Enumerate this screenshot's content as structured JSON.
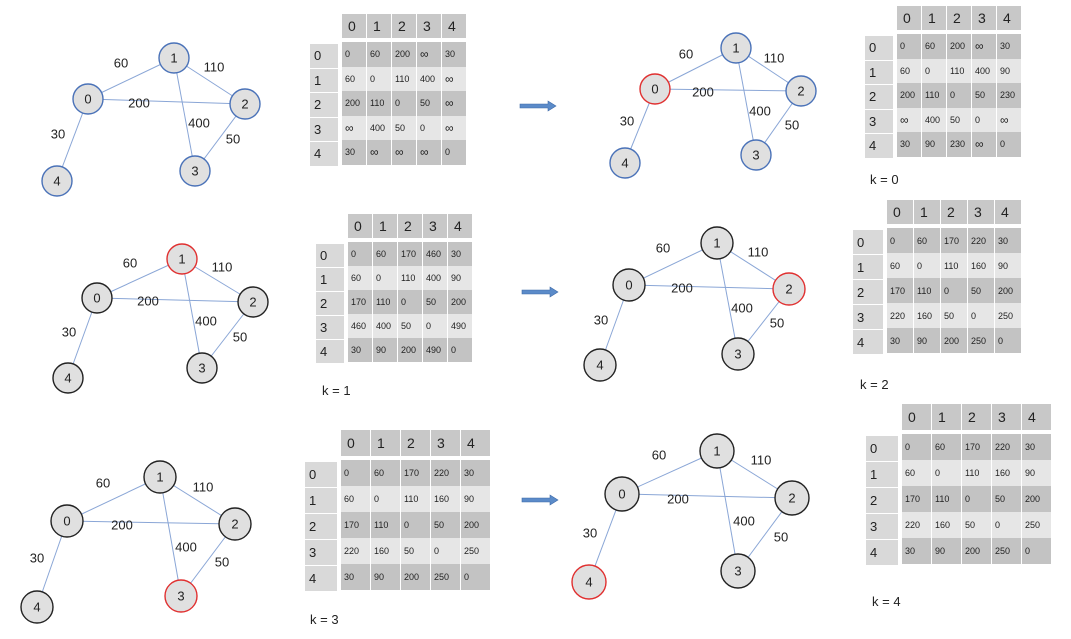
{
  "colors": {
    "node_fill": "#e0e0e0",
    "node_stroke": "#4a72b8",
    "edge": "#8aa6d6",
    "highlight": "#e03030",
    "plain_node_stroke": "#222222",
    "arrow": "#5b8bc9"
  },
  "col_headers": [
    "0",
    "1",
    "2",
    "3",
    "4"
  ],
  "row_headers": [
    "0",
    "1",
    "2",
    "3",
    "4"
  ],
  "graph_edges": [
    {
      "a": 0,
      "b": 1,
      "w": "60"
    },
    {
      "a": 1,
      "b": 2,
      "w": "110"
    },
    {
      "a": 0,
      "b": 2,
      "w": "200"
    },
    {
      "a": 1,
      "b": 3,
      "w": "400"
    },
    {
      "a": 2,
      "b": 3,
      "w": "50"
    },
    {
      "a": 0,
      "b": 4,
      "w": "30"
    }
  ],
  "panels": [
    {
      "k_label": "",
      "highlight": null,
      "matrix": [
        [
          "0",
          "60",
          "200",
          "∞",
          "30"
        ],
        [
          "60",
          "0",
          "110",
          "400",
          "∞"
        ],
        [
          "200",
          "110",
          "0",
          "50",
          "∞"
        ],
        [
          "∞",
          "400",
          "50",
          "0",
          "∞"
        ],
        [
          "30",
          "∞",
          "∞",
          "∞",
          "0"
        ]
      ]
    },
    {
      "k_label": "k = 0",
      "highlight": 0,
      "matrix": [
        [
          "0",
          "60",
          "200",
          "∞",
          "30"
        ],
        [
          "60",
          "0",
          "110",
          "400",
          "90"
        ],
        [
          "200",
          "110",
          "0",
          "50",
          "230"
        ],
        [
          "∞",
          "400",
          "50",
          "0",
          "∞"
        ],
        [
          "30",
          "90",
          "230",
          "∞",
          "0"
        ]
      ]
    },
    {
      "k_label": "k = 1",
      "highlight": 1,
      "matrix": [
        [
          "0",
          "60",
          "170",
          "460",
          "30"
        ],
        [
          "60",
          "0",
          "110",
          "400",
          "90"
        ],
        [
          "170",
          "110",
          "0",
          "50",
          "200"
        ],
        [
          "460",
          "400",
          "50",
          "0",
          "490"
        ],
        [
          "30",
          "90",
          "200",
          "490",
          "0"
        ]
      ]
    },
    {
      "k_label": "k = 2",
      "highlight": 2,
      "matrix": [
        [
          "0",
          "60",
          "170",
          "220",
          "30"
        ],
        [
          "60",
          "0",
          "110",
          "160",
          "90"
        ],
        [
          "170",
          "110",
          "0",
          "50",
          "200"
        ],
        [
          "220",
          "160",
          "50",
          "0",
          "250"
        ],
        [
          "30",
          "90",
          "200",
          "250",
          "0"
        ]
      ]
    },
    {
      "k_label": "k = 3",
      "highlight": 3,
      "matrix": [
        [
          "0",
          "60",
          "170",
          "220",
          "30"
        ],
        [
          "60",
          "0",
          "110",
          "160",
          "90"
        ],
        [
          "170",
          "110",
          "0",
          "50",
          "200"
        ],
        [
          "220",
          "160",
          "50",
          "0",
          "250"
        ],
        [
          "30",
          "90",
          "200",
          "250",
          "0"
        ]
      ]
    },
    {
      "k_label": "k = 4",
      "highlight": 4,
      "matrix": [
        [
          "0",
          "60",
          "170",
          "220",
          "30"
        ],
        [
          "60",
          "0",
          "110",
          "160",
          "90"
        ],
        [
          "170",
          "110",
          "0",
          "50",
          "200"
        ],
        [
          "220",
          "160",
          "50",
          "0",
          "250"
        ],
        [
          "30",
          "90",
          "200",
          "250",
          "0"
        ]
      ]
    }
  ]
}
